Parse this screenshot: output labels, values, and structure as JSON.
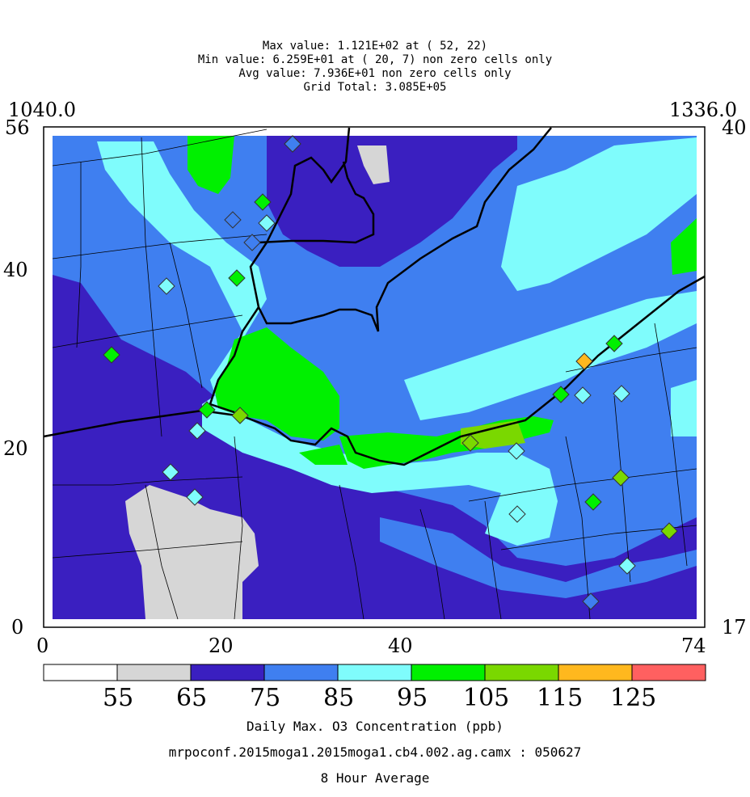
{
  "stats": {
    "max_line": "Max value:  1.121E+02 at ( 52, 22)",
    "min_line": "Min value:  6.259E+01 at ( 20,  7) non zero cells only",
    "avg_line": "Avg value:  7.936E+01 non zero cells only",
    "total_line": "Grid Total:  3.085E+05"
  },
  "corners": {
    "top_left": "1040.0",
    "top_right": "1336.0",
    "left_top": "56",
    "right_top": "40",
    "left_bottom": "0",
    "right_bottom": "17"
  },
  "axis": {
    "x_ticks": [
      "0",
      "20",
      "40",
      "74"
    ],
    "y_ticks": [
      "40",
      "20"
    ]
  },
  "colorbar": {
    "colors": [
      "#ffffff",
      "#d6d6d6",
      "#3a1fc0",
      "#3f7ff0",
      "#7ffcfc",
      "#00f000",
      "#7ad800",
      "#ffb81e",
      "#ff6060"
    ],
    "labels": [
      "55",
      "65",
      "75",
      "85",
      "95",
      "105",
      "115",
      "125"
    ]
  },
  "captions": {
    "variable": "Daily Max. O3 Concentration (ppb)",
    "run": "mrpoconf.2015moga1.2015moga1.cb4.002.ag.camx : 050627",
    "averaging": "8 Hour Average"
  },
  "palette": {
    "grey": "#d6d6d6",
    "dark_blue": "#3a1fc0",
    "blue": "#3f7ff0",
    "cyan": "#7ffcfc",
    "green": "#00f000",
    "yellow_green": "#7ad800",
    "orange": "#ffb81e"
  },
  "monitors": [
    {
      "id": "site-1",
      "color": "#7ffcfc"
    },
    {
      "id": "site-2",
      "color": "#3f7ff0"
    },
    {
      "id": "site-3",
      "color": "#00f000"
    },
    {
      "id": "site-4",
      "color": "#7ffcfc"
    },
    {
      "id": "site-5",
      "color": "#3f7ff0"
    },
    {
      "id": "site-6",
      "color": "#00f000"
    },
    {
      "id": "site-7",
      "color": "#7ffcfc"
    },
    {
      "id": "site-8",
      "color": "#00f000"
    },
    {
      "id": "site-9",
      "color": "#00f000"
    },
    {
      "id": "site-10",
      "color": "#7ad800"
    },
    {
      "id": "site-11",
      "color": "#7ffcfc"
    },
    {
      "id": "site-12",
      "color": "#7ffcfc"
    },
    {
      "id": "site-13",
      "color": "#7ffcfc"
    },
    {
      "id": "site-14",
      "color": "#7ad800"
    },
    {
      "id": "site-15",
      "color": "#7ffcfc"
    },
    {
      "id": "site-16",
      "color": "#7ffcfc"
    },
    {
      "id": "site-17",
      "color": "#ffb81e"
    },
    {
      "id": "site-18",
      "color": "#00f000"
    },
    {
      "id": "site-19",
      "color": "#7ffcfc"
    },
    {
      "id": "site-20",
      "color": "#7ffcfc"
    },
    {
      "id": "site-21",
      "color": "#00f000"
    },
    {
      "id": "site-22",
      "color": "#7ad800"
    },
    {
      "id": "site-23",
      "color": "#00f000"
    },
    {
      "id": "site-24",
      "color": "#7ad800"
    },
    {
      "id": "site-25",
      "color": "#7ffcfc"
    },
    {
      "id": "site-26",
      "color": "#3f7ff0"
    },
    {
      "id": "site-27",
      "color": "#3f7ff0"
    }
  ]
}
